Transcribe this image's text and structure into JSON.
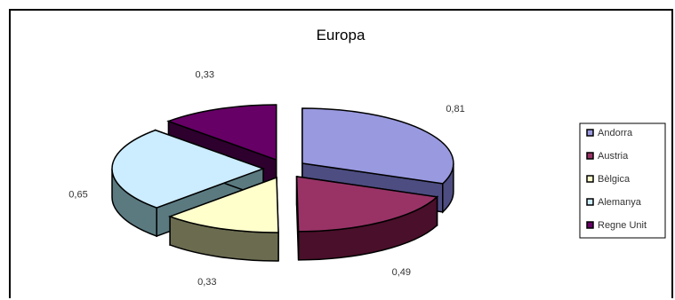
{
  "chart_data": {
    "type": "pie",
    "title": "Europa",
    "categories": [
      "Andorra",
      "Austria",
      "Bèlgica",
      "Alemanya",
      "Regne Unit"
    ],
    "values": [
      0.81,
      0.49,
      0.33,
      0.65,
      0.33
    ],
    "value_labels": [
      "0,81",
      "0,49",
      "0,33",
      "0,65",
      "0,33"
    ],
    "legend_position": "right",
    "style": "exploded-3d",
    "colors": {
      "Andorra": "#9999e0",
      "Austria": "#993366",
      "Bèlgica": "#ffffcc",
      "Alemanya": "#ccecff",
      "Regne Unit": "#660066"
    },
    "side_colors": {
      "Andorra": "#4d4d82",
      "Austria": "#4a0f2a",
      "Bèlgica": "#6b6b50",
      "Alemanya": "#5a7a80",
      "Regne Unit": "#2e002e"
    }
  }
}
